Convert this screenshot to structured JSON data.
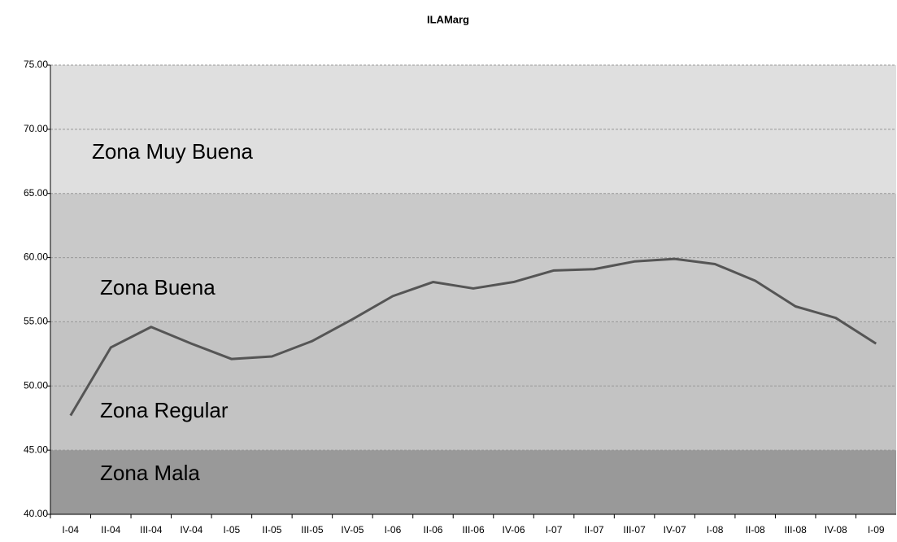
{
  "chart_data": {
    "type": "line",
    "title": "ILAMarg",
    "categories": [
      "I-04",
      "II-04",
      "III-04",
      "IV-04",
      "I-05",
      "II-05",
      "III-05",
      "IV-05",
      "I-06",
      "II-06",
      "III-06",
      "IV-06",
      "I-07",
      "II-07",
      "III-07",
      "IV-07",
      "I-08",
      "II-08",
      "III-08",
      "IV-08",
      "I-09"
    ],
    "series": [
      {
        "name": "ILAMarg",
        "color": "#555555",
        "values": [
          47.7,
          53.0,
          54.6,
          53.3,
          52.1,
          52.3,
          53.5,
          55.2,
          57.0,
          58.1,
          57.6,
          58.1,
          59.0,
          59.1,
          59.7,
          59.9,
          59.5,
          58.2,
          56.2,
          55.3,
          53.3
        ]
      }
    ],
    "zones": [
      {
        "name": "Zona Muy Buena",
        "range": [
          65,
          75
        ],
        "color": "#dfdfdf"
      },
      {
        "name": "Zona Buena",
        "range": [
          55,
          65
        ],
        "color": "#c9c9c9"
      },
      {
        "name": "Zona Regular",
        "range": [
          45,
          55
        ],
        "color": "#c3c3c3"
      },
      {
        "name": "Zona Mala",
        "range": [
          40,
          45
        ],
        "color": "#999999"
      }
    ],
    "ylim": [
      40,
      75
    ],
    "yticks": [
      {
        "value": 40,
        "label": "40.00"
      },
      {
        "value": 45,
        "label": "45.00"
      },
      {
        "value": 50,
        "label": "50.00"
      },
      {
        "value": 55,
        "label": "55.00"
      },
      {
        "value": 60,
        "label": "60.00"
      },
      {
        "value": 65,
        "label": "65.00"
      },
      {
        "value": 70,
        "label": "70.00"
      },
      {
        "value": 75,
        "label": "75.00"
      }
    ],
    "grid": true
  }
}
